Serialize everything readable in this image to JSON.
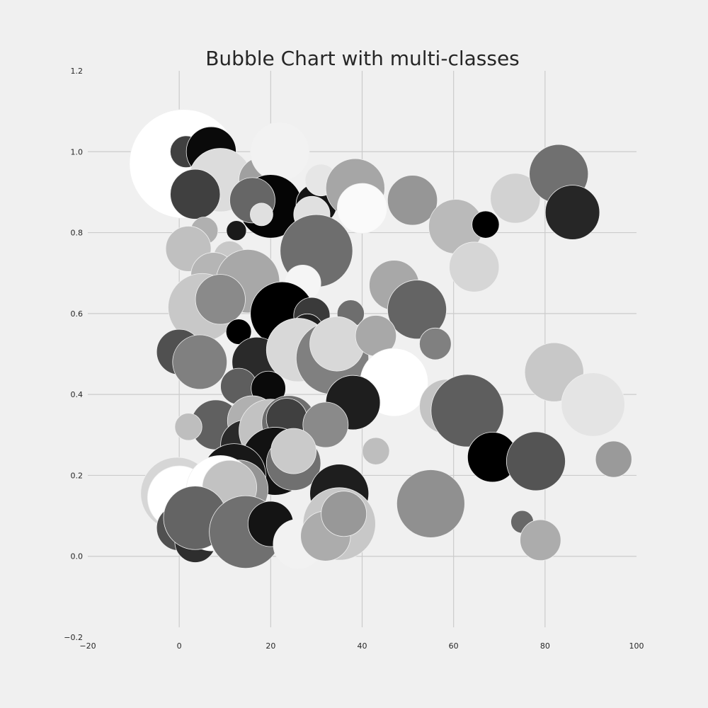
{
  "chart_data": {
    "type": "scatter",
    "title": "Bubble Chart with multi-classes",
    "xlabel": "",
    "ylabel": "",
    "xlim": [
      -20,
      100
    ],
    "ylim": [
      -0.2,
      1.2
    ],
    "x_ticks": [
      "−20",
      "0",
      "20",
      "40",
      "60",
      "80",
      "100"
    ],
    "y_ticks": [
      "−0.2",
      "0.0",
      "0.2",
      "0.4",
      "0.6",
      "0.8",
      "1.0",
      "1.2"
    ],
    "grid": true,
    "style": "fivethirtyeight grayscale",
    "size_unit": "relative bubble radius (estimated)",
    "points": [
      {
        "x": 1,
        "y": 0.97,
        "r": 12,
        "color": "#ffffff"
      },
      {
        "x": 1.5,
        "y": 1.0,
        "r": 3.5,
        "color": "#404040"
      },
      {
        "x": 7,
        "y": 1.0,
        "r": 5.5,
        "color": "#0a0a0a"
      },
      {
        "x": 9,
        "y": 0.93,
        "r": 7,
        "color": "#dcdcdc"
      },
      {
        "x": 18,
        "y": 0.93,
        "r": 5,
        "color": "#a0a0a0"
      },
      {
        "x": 22,
        "y": 1.0,
        "r": 6.5,
        "color": "#f2f2f2"
      },
      {
        "x": 3.5,
        "y": 0.895,
        "r": 5.5,
        "color": "#404040"
      },
      {
        "x": 20,
        "y": 0.865,
        "r": 7,
        "color": "#050505"
      },
      {
        "x": 16,
        "y": 0.88,
        "r": 5,
        "color": "#666666"
      },
      {
        "x": 18,
        "y": 0.845,
        "r": 2.5,
        "color": "#e0e0e0"
      },
      {
        "x": 30,
        "y": 0.87,
        "r": 4.5,
        "color": "#141414"
      },
      {
        "x": 31,
        "y": 0.93,
        "r": 3.5,
        "color": "#e6e6e6"
      },
      {
        "x": 29,
        "y": 0.845,
        "r": 4,
        "color": "#e0e0e0"
      },
      {
        "x": 38.5,
        "y": 0.91,
        "r": 6.5,
        "color": "#a6a6a6"
      },
      {
        "x": 40,
        "y": 0.86,
        "r": 5.5,
        "color": "#fafafa"
      },
      {
        "x": 51,
        "y": 0.88,
        "r": 5.5,
        "color": "#969696"
      },
      {
        "x": 73.5,
        "y": 0.885,
        "r": 5.5,
        "color": "#d2d2d2"
      },
      {
        "x": 83,
        "y": 0.945,
        "r": 6.5,
        "color": "#707070"
      },
      {
        "x": 86,
        "y": 0.85,
        "r": 6,
        "color": "#262626"
      },
      {
        "x": 60.5,
        "y": 0.815,
        "r": 6,
        "color": "#bababa"
      },
      {
        "x": 67,
        "y": 0.82,
        "r": 3,
        "color": "#000000"
      },
      {
        "x": 5.5,
        "y": 0.805,
        "r": 3,
        "color": "#b0b0b0"
      },
      {
        "x": 12.5,
        "y": 0.805,
        "r": 2.2,
        "color": "#1a1a1a"
      },
      {
        "x": 2,
        "y": 0.76,
        "r": 5,
        "color": "#c0c0c0"
      },
      {
        "x": 11,
        "y": 0.74,
        "r": 3.5,
        "color": "#c8c8c8"
      },
      {
        "x": 30,
        "y": 0.755,
        "r": 8,
        "color": "#6e6e6e"
      },
      {
        "x": 4,
        "y": 0.635,
        "r": 5,
        "color": "#ffffff"
      },
      {
        "x": 7.5,
        "y": 0.695,
        "r": 5,
        "color": "#b5b5b5"
      },
      {
        "x": 15,
        "y": 0.68,
        "r": 7,
        "color": "#a8a8a8"
      },
      {
        "x": 27,
        "y": 0.675,
        "r": 4,
        "color": "#f5f5f5"
      },
      {
        "x": 64.5,
        "y": 0.715,
        "r": 5.5,
        "color": "#d6d6d6"
      },
      {
        "x": 47,
        "y": 0.67,
        "r": 5.5,
        "color": "#a8a8a8"
      },
      {
        "x": 5,
        "y": 0.615,
        "r": 7.5,
        "color": "#c8c8c8"
      },
      {
        "x": 9,
        "y": 0.635,
        "r": 5.5,
        "color": "#8a8a8a"
      },
      {
        "x": 22.5,
        "y": 0.6,
        "r": 7,
        "color": "#000000"
      },
      {
        "x": 29,
        "y": 0.595,
        "r": 4,
        "color": "#3a3a3a"
      },
      {
        "x": 37.5,
        "y": 0.6,
        "r": 3,
        "color": "#6e6e6e"
      },
      {
        "x": 52,
        "y": 0.61,
        "r": 6.5,
        "color": "#646464"
      },
      {
        "x": 28,
        "y": 0.56,
        "r": 3.5,
        "color": "#202020"
      },
      {
        "x": 13,
        "y": 0.555,
        "r": 2.8,
        "color": "#000000"
      },
      {
        "x": 0,
        "y": 0.505,
        "r": 5,
        "color": "#505050"
      },
      {
        "x": 4.5,
        "y": 0.48,
        "r": 6,
        "color": "#808080"
      },
      {
        "x": 17,
        "y": 0.48,
        "r": 5.5,
        "color": "#2a2a2a"
      },
      {
        "x": 26,
        "y": 0.51,
        "r": 7,
        "color": "#d8d8d8"
      },
      {
        "x": 33.5,
        "y": 0.49,
        "r": 8,
        "color": "#808080"
      },
      {
        "x": 34.5,
        "y": 0.525,
        "r": 6,
        "color": "#d8d8d8"
      },
      {
        "x": 43,
        "y": 0.545,
        "r": 4.5,
        "color": "#a8a8a8"
      },
      {
        "x": 56,
        "y": 0.525,
        "r": 3.5,
        "color": "#808080"
      },
      {
        "x": 47,
        "y": 0.43,
        "r": 7.5,
        "color": "#ffffff"
      },
      {
        "x": 82,
        "y": 0.455,
        "r": 6.5,
        "color": "#c8c8c8"
      },
      {
        "x": 13,
        "y": 0.42,
        "r": 4,
        "color": "#5e5e5e"
      },
      {
        "x": 19.5,
        "y": 0.415,
        "r": 3.8,
        "color": "#0a0a0a"
      },
      {
        "x": 38,
        "y": 0.38,
        "r": 6,
        "color": "#1e1e1e"
      },
      {
        "x": 58.5,
        "y": 0.37,
        "r": 6,
        "color": "#c4c4c4"
      },
      {
        "x": 63,
        "y": 0.36,
        "r": 8,
        "color": "#5e5e5e"
      },
      {
        "x": 90.5,
        "y": 0.375,
        "r": 7,
        "color": "#e4e4e4"
      },
      {
        "x": 8,
        "y": 0.325,
        "r": 5.5,
        "color": "#606060"
      },
      {
        "x": 2,
        "y": 0.32,
        "r": 3,
        "color": "#bebebe"
      },
      {
        "x": 16,
        "y": 0.335,
        "r": 5.5,
        "color": "#b0b0b0"
      },
      {
        "x": 14.5,
        "y": 0.275,
        "r": 5.5,
        "color": "#2a2a2a"
      },
      {
        "x": 20,
        "y": 0.31,
        "r": 7,
        "color": "#c2c2c2"
      },
      {
        "x": 24,
        "y": 0.33,
        "r": 6,
        "color": "#6e6e6e"
      },
      {
        "x": 23.5,
        "y": 0.34,
        "r": 4.5,
        "color": "#404040"
      },
      {
        "x": 32,
        "y": 0.325,
        "r": 5,
        "color": "#8a8a8a"
      },
      {
        "x": 43,
        "y": 0.26,
        "r": 3,
        "color": "#bebebe"
      },
      {
        "x": 21,
        "y": 0.235,
        "r": 7.5,
        "color": "#121212"
      },
      {
        "x": 25,
        "y": 0.23,
        "r": 6,
        "color": "#707070"
      },
      {
        "x": 25,
        "y": 0.26,
        "r": 5,
        "color": "#cacaca"
      },
      {
        "x": 68.5,
        "y": 0.245,
        "r": 5.5,
        "color": "#000000"
      },
      {
        "x": 78,
        "y": 0.235,
        "r": 6.5,
        "color": "#545454"
      },
      {
        "x": 95,
        "y": 0.24,
        "r": 4,
        "color": "#9a9a9a"
      },
      {
        "x": 12,
        "y": 0.2,
        "r": 7,
        "color": "#181818"
      },
      {
        "x": 13,
        "y": 0.165,
        "r": 6.5,
        "color": "#949494"
      },
      {
        "x": -0.5,
        "y": 0.155,
        "r": 8,
        "color": "#d6d6d6"
      },
      {
        "x": 0,
        "y": 0.145,
        "r": 7,
        "color": "#ffffff"
      },
      {
        "x": 9,
        "y": 0.165,
        "r": 7.5,
        "color": "#ffffff"
      },
      {
        "x": 11,
        "y": 0.17,
        "r": 6,
        "color": "#c2c2c2"
      },
      {
        "x": 35,
        "y": 0.155,
        "r": 6.5,
        "color": "#1e1e1e"
      },
      {
        "x": 55,
        "y": 0.13,
        "r": 7.5,
        "color": "#909090"
      },
      {
        "x": 0,
        "y": 0.07,
        "r": 5,
        "color": "#505050"
      },
      {
        "x": 3.5,
        "y": 0.035,
        "r": 4.5,
        "color": "#2e2e2e"
      },
      {
        "x": 7,
        "y": 0.075,
        "r": 5.5,
        "color": "#ffffff"
      },
      {
        "x": 3.5,
        "y": 0.095,
        "r": 7,
        "color": "#646464"
      },
      {
        "x": 14.5,
        "y": 0.06,
        "r": 8,
        "color": "#707070"
      },
      {
        "x": 20,
        "y": 0.08,
        "r": 5,
        "color": "#141414"
      },
      {
        "x": 26,
        "y": 0.03,
        "r": 5.5,
        "color": "#f2f2f2"
      },
      {
        "x": 35,
        "y": 0.08,
        "r": 8,
        "color": "#c8c8c8"
      },
      {
        "x": 32,
        "y": 0.05,
        "r": 5.5,
        "color": "#acacac"
      },
      {
        "x": 36,
        "y": 0.105,
        "r": 5,
        "color": "#989898"
      },
      {
        "x": 75,
        "y": 0.085,
        "r": 2.5,
        "color": "#686868"
      },
      {
        "x": 79,
        "y": 0.04,
        "r": 4.5,
        "color": "#acacac"
      }
    ]
  }
}
